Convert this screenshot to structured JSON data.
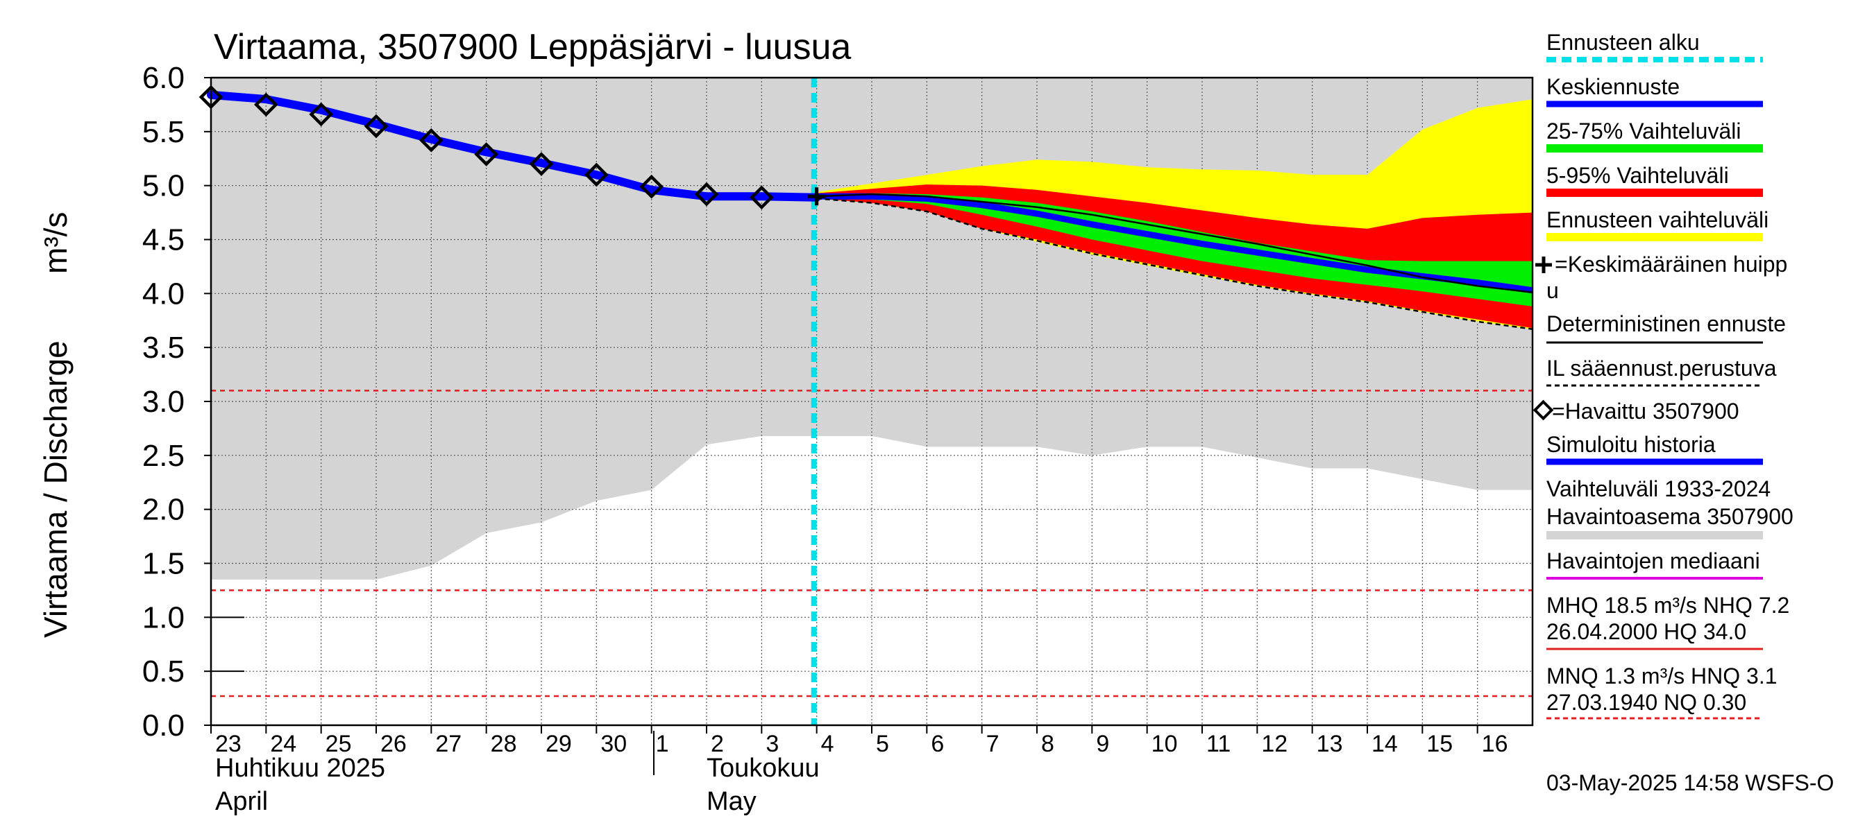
{
  "chart_data": {
    "type": "line",
    "title": "Virtaama, 3507900 Leppäsjärvi - luusua",
    "ylabel": "Virtaama / Discharge",
    "yunit": "m³/s",
    "ylim": [
      0,
      6
    ],
    "yticks": [
      "0.0",
      "0.5",
      "1.0",
      "1.5",
      "2.0",
      "2.5",
      "3.0",
      "3.5",
      "4.0",
      "4.5",
      "5.0",
      "5.5",
      "6.0"
    ],
    "x_day_labels": [
      "23",
      "24",
      "25",
      "26",
      "27",
      "28",
      "29",
      "30",
      "1",
      "2",
      "3",
      "4",
      "5",
      "6",
      "7",
      "8",
      "9",
      "10",
      "11",
      "12",
      "13",
      "14",
      "15",
      "16"
    ],
    "month_labels": {
      "april_fi": "Huhtikuu  2025",
      "april_en": "April",
      "may_fi": "Toukokuu",
      "may_en": "May"
    },
    "grid": true,
    "forecast_start_day": 10.95,
    "reference_lines": [
      3.1,
      1.25,
      0.27
    ],
    "history_band": {
      "x": [
        0,
        1,
        2,
        3,
        4,
        5,
        6,
        7,
        8,
        9,
        10,
        11,
        12,
        13,
        14,
        15,
        16,
        17,
        18,
        19,
        20,
        21,
        22,
        23,
        24
      ],
      "lower": [
        1.35,
        1.35,
        1.35,
        1.35,
        1.48,
        1.78,
        1.88,
        2.08,
        2.18,
        2.6,
        2.68,
        2.68,
        2.68,
        2.58,
        2.58,
        2.58,
        2.5,
        2.58,
        2.58,
        2.48,
        2.38,
        2.38,
        2.28,
        2.18,
        2.18
      ],
      "upper": [
        6.0,
        6.0,
        6.0,
        6.0,
        6.0,
        6.0,
        6.0,
        6.0,
        6.0,
        6.0,
        6.0,
        6.0,
        6.0,
        6.0,
        6.0,
        6.0,
        6.0,
        6.0,
        6.0,
        6.0,
        6.0,
        6.0,
        6.0,
        6.0,
        6.0
      ]
    },
    "observed": {
      "name": "Havaittu 3507900",
      "x": [
        0,
        1,
        2,
        3,
        4,
        5,
        6,
        7,
        8,
        9,
        10
      ],
      "values": [
        5.82,
        5.75,
        5.66,
        5.55,
        5.42,
        5.29,
        5.2,
        5.1,
        4.99,
        4.92,
        4.89
      ]
    },
    "simulated_history": {
      "x": [
        0,
        1,
        2,
        3,
        4,
        5,
        6,
        7,
        8,
        9,
        10,
        11
      ],
      "values": [
        5.84,
        5.8,
        5.7,
        5.57,
        5.43,
        5.31,
        5.21,
        5.1,
        4.96,
        4.9,
        4.9,
        4.89
      ]
    },
    "forecast": {
      "x": [
        11,
        12,
        13,
        14,
        15,
        16,
        17,
        18,
        19,
        20,
        21,
        22,
        23,
        24
      ],
      "forecast_range_upper": [
        4.94,
        5.02,
        5.1,
        5.18,
        5.24,
        5.22,
        5.17,
        5.15,
        5.14,
        5.1,
        5.1,
        5.52,
        5.72,
        5.8
      ],
      "forecast_range_lower": [
        4.88,
        4.84,
        4.76,
        4.6,
        4.48,
        4.36,
        4.26,
        4.16,
        4.07,
        3.99,
        3.92,
        3.83,
        3.74,
        3.67
      ],
      "p5_95_upper": [
        4.93,
        4.97,
        5.01,
        5.0,
        4.96,
        4.9,
        4.84,
        4.77,
        4.7,
        4.64,
        4.6,
        4.7,
        4.73,
        4.75
      ],
      "p5_95_lower": [
        4.88,
        4.84,
        4.76,
        4.6,
        4.5,
        4.38,
        4.28,
        4.18,
        4.08,
        4.0,
        3.93,
        3.84,
        3.76,
        3.68
      ],
      "p25_75_upper": [
        4.91,
        4.93,
        4.92,
        4.89,
        4.84,
        4.76,
        4.67,
        4.57,
        4.47,
        4.39,
        4.31,
        4.3,
        4.3,
        4.3
      ],
      "p25_75_lower": [
        4.89,
        4.87,
        4.83,
        4.73,
        4.62,
        4.5,
        4.4,
        4.3,
        4.22,
        4.14,
        4.08,
        4.02,
        3.95,
        3.88
      ],
      "mean": [
        4.9,
        4.9,
        4.88,
        4.82,
        4.74,
        4.64,
        4.55,
        4.46,
        4.38,
        4.3,
        4.22,
        4.16,
        4.1,
        4.03
      ],
      "deterministic": [
        4.9,
        4.92,
        4.9,
        4.85,
        4.8,
        4.73,
        4.64,
        4.55,
        4.46,
        4.36,
        4.26,
        4.15,
        4.07,
        4.01
      ],
      "il_based": [
        4.88,
        4.84,
        4.76,
        4.6,
        4.49,
        4.37,
        4.27,
        4.17,
        4.07,
        3.99,
        3.92,
        3.83,
        3.74,
        3.67
      ]
    },
    "mean_peak": {
      "x": 11.0,
      "value": 4.9
    },
    "colors": {
      "history_band": "#d4d4d4",
      "observed": "#000000",
      "mean": "#0000ff",
      "p25_75": "#00ee00",
      "p5_95": "#ff0000",
      "forecast_range": "#ffff00",
      "forecast_start": "#00e0e8",
      "reference": "#e02020",
      "median": "#dd00dd"
    }
  },
  "legend": {
    "forecast_start": "Ennusteen alku",
    "mean_forecast": "Keskiennuste",
    "range_25_75": "25-75% Vaihteluväli",
    "range_5_95": "5-95% Vaihteluväli",
    "forecast_range": "Ennusteen vaihteluväli",
    "mean_peak_line1": "=Keskimääräinen huipp",
    "mean_peak_line2": "u",
    "deterministic": "Deterministinen ennuste",
    "il_based": "IL sääennust.perustuva",
    "observed": "=Havaittu 3507900",
    "simulated": "Simuloitu historia",
    "history_range_line1": "Vaihteluväli 1933-2024",
    "history_range_line2": " Havaintoasema 3507900",
    "median": "Havaintojen mediaani",
    "mhq_line1": "MHQ 18.5 m³/s NHQ  7.2",
    "mhq_line2": "26.04.2000 HQ 34.0",
    "mnq_line1": "MNQ  1.3 m³/s HNQ  3.1",
    "mnq_line2": "27.03.1940 NQ 0.30"
  },
  "timestamp": "03-May-2025 14:58 WSFS-O"
}
